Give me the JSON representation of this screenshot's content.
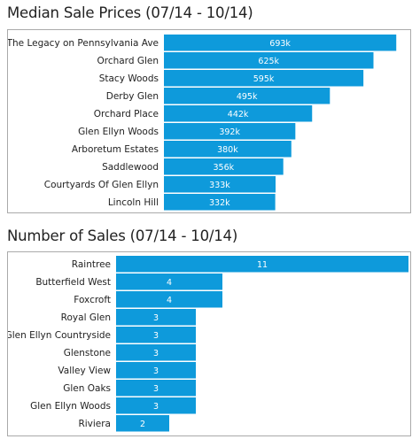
{
  "chart_data": [
    {
      "type": "bar",
      "orientation": "horizontal",
      "title": "Median Sale Prices (07/14 - 10/14)",
      "categories": [
        "The Legacy on Pennsylvania Ave",
        "Orchard Glen",
        "Stacy Woods",
        "Derby Glen",
        "Orchard Place",
        "Glen Ellyn Woods",
        "Arboretum Estates",
        "Saddlewood",
        "Courtyards Of Glen Ellyn",
        "Lincoln Hill"
      ],
      "values": [
        693,
        625,
        595,
        495,
        442,
        392,
        380,
        356,
        333,
        332
      ],
      "data_labels": [
        "693k",
        "625k",
        "595k",
        "495k",
        "442k",
        "392k",
        "380k",
        "356k",
        "333k",
        "332k"
      ],
      "xlim": [
        0,
        740
      ],
      "bar_color": "#0e9adb",
      "grid": false,
      "legend": "none"
    },
    {
      "type": "bar",
      "orientation": "horizontal",
      "title": "Number of Sales (07/14 - 10/14)",
      "categories": [
        "Raintree",
        "Butterfield West",
        "Foxcroft",
        "Royal Glen",
        "Glen Ellyn Countryside",
        "Glenstone",
        "Valley View",
        "Glen Oaks",
        "Glen Ellyn Woods",
        "Riviera"
      ],
      "values": [
        11,
        4,
        4,
        3,
        3,
        3,
        3,
        3,
        3,
        2
      ],
      "data_labels": [
        "11",
        "4",
        "4",
        "3",
        "3",
        "3",
        "3",
        "3",
        "3",
        "2"
      ],
      "xlim": [
        0,
        11
      ],
      "bar_color": "#0e9adb",
      "grid": false,
      "legend": "none"
    }
  ]
}
